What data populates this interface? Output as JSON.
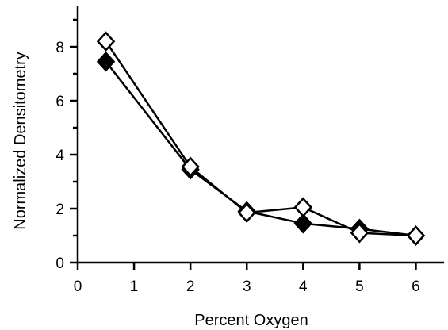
{
  "chart_data": {
    "type": "line",
    "xlabel": "Percent Oxygen",
    "ylabel": "Normalized Densitometry",
    "xlim": [
      0,
      6.5
    ],
    "ylim": [
      0,
      9.5
    ],
    "xticks": [
      0,
      1,
      2,
      3,
      4,
      5,
      6
    ],
    "xtick_labels": [
      "0",
      "1",
      "2",
      "3",
      "4",
      "5",
      "6"
    ],
    "yticks": [
      0,
      2,
      4,
      6,
      8
    ],
    "ytick_labels": [
      "0",
      "2",
      "4",
      "6",
      "8"
    ],
    "minor_yticks": [
      1,
      3,
      5,
      7,
      9
    ],
    "grid": false,
    "x": [
      0.5,
      2,
      3,
      4,
      5,
      6
    ],
    "series": [
      {
        "marker": "filled-diamond",
        "color": "#000000",
        "values": [
          7.45,
          3.45,
          1.9,
          1.45,
          1.25,
          1.0
        ]
      },
      {
        "marker": "open-diamond",
        "color": "#ffffff",
        "values": [
          8.2,
          3.55,
          1.85,
          2.05,
          1.1,
          1.0
        ]
      }
    ]
  }
}
